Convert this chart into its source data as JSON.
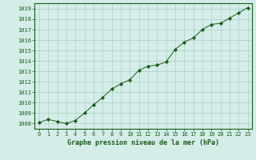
{
  "x": [
    0,
    1,
    2,
    3,
    4,
    5,
    6,
    7,
    8,
    9,
    10,
    11,
    12,
    13,
    14,
    15,
    16,
    17,
    18,
    19,
    20,
    21,
    22,
    23
  ],
  "y": [
    1008.1,
    1008.4,
    1008.2,
    1008.0,
    1008.3,
    1009.0,
    1009.8,
    1010.5,
    1011.3,
    1011.8,
    1012.2,
    1013.1,
    1013.5,
    1013.6,
    1013.9,
    1015.1,
    1015.8,
    1016.2,
    1017.0,
    1017.5,
    1017.6,
    1018.1,
    1018.6,
    1019.1
  ],
  "line_color": "#1a5c1a",
  "marker": "D",
  "marker_size": 2.2,
  "bg_color": "#d4ede8",
  "grid_color": "#aaccc4",
  "xlabel": "Graphe pression niveau de la mer (hPa)",
  "xlabel_color": "#1a5c1a",
  "tick_color": "#1a5c1a",
  "ylim": [
    1007.5,
    1019.5
  ],
  "yticks": [
    1008,
    1009,
    1010,
    1011,
    1012,
    1013,
    1014,
    1015,
    1016,
    1017,
    1018,
    1019
  ],
  "xlim": [
    -0.5,
    23.5
  ],
  "xticks": [
    0,
    1,
    2,
    3,
    4,
    5,
    6,
    7,
    8,
    9,
    10,
    11,
    12,
    13,
    14,
    15,
    16,
    17,
    18,
    19,
    20,
    21,
    22,
    23
  ],
  "tick_fontsize": 5.0,
  "xlabel_fontsize": 6.0,
  "linewidth": 0.7,
  "spine_color": "#1a5c1a",
  "spine_linewidth": 0.8
}
